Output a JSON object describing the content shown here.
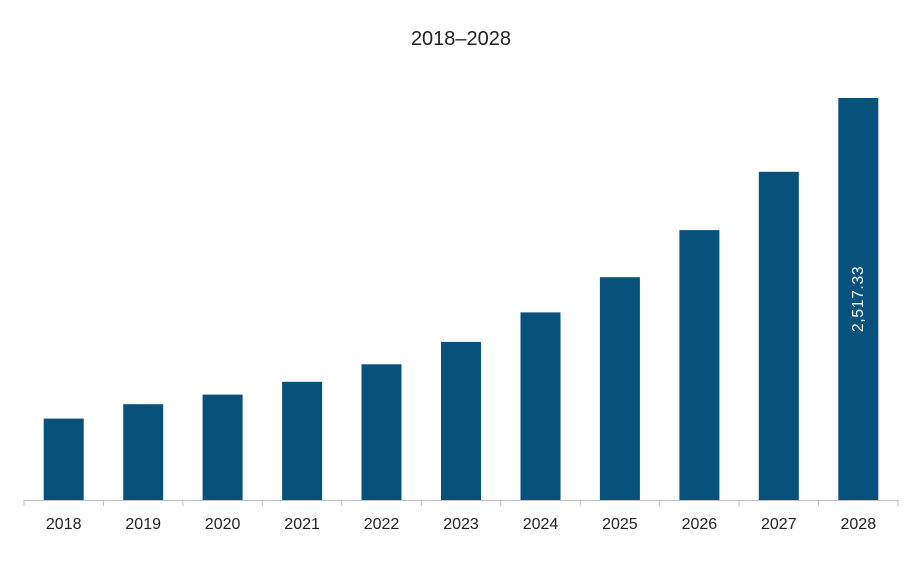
{
  "chart_data": {
    "type": "bar",
    "title": "2018–2028",
    "xlabel": "",
    "ylabel": "",
    "categories": [
      "2018",
      "2019",
      "2020",
      "2021",
      "2022",
      "2023",
      "2024",
      "2025",
      "2026",
      "2027",
      "2028"
    ],
    "values": [
      510,
      600,
      660,
      740,
      850,
      990,
      1175,
      1395,
      1690,
      2055,
      2517.33
    ],
    "data_labels": {
      "10": "2,517.33"
    },
    "ylim": [
      0,
      2517.33
    ],
    "grid": false,
    "legend": "none",
    "colors": {
      "bar": "#07517D",
      "axis": "#BFBFBF",
      "text": "#222222",
      "data_label": "#ffffff"
    }
  }
}
